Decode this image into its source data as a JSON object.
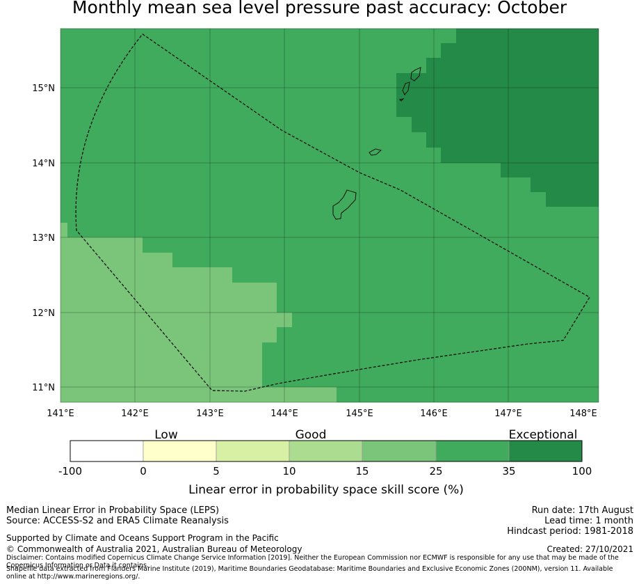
{
  "title": "Monthly mean sea level pressure past accuracy: October",
  "map": {
    "lon_ticks": [
      "141°E",
      "142°E",
      "143°E",
      "144°E",
      "145°E",
      "146°E",
      "147°E",
      "148°E"
    ],
    "lat_ticks": [
      "15°N",
      "14°N",
      "13°N",
      "12°N",
      "11°N"
    ],
    "colors": {
      "c25_35": "#40aa5d",
      "c35_100": "#248a47",
      "c15_25": "#7ac57a"
    }
  },
  "colorbar": {
    "category_labels": [
      "Low",
      "Good",
      "Exceptional"
    ],
    "tick_labels": [
      "-100",
      "0",
      "5",
      "10",
      "15",
      "25",
      "35",
      "100"
    ],
    "colors": [
      "#ffffff",
      "#ffffcc",
      "#d8f0a3",
      "#acdc8f",
      "#7ac57a",
      "#40aa5d",
      "#248a47"
    ],
    "axis_label": "Linear error in probability space skill score (%)"
  },
  "footer": {
    "left_line1": "Median Linear Error in Probability Space (LEPS)",
    "left_line2": "Source: ACCESS-S2 and ERA5 Climate Reanalysis",
    "support": "Supported by Climate and Oceans Support Program in the Pacific",
    "copyright": "© Commonwealth of Australia 2021, Australian Bureau of Meteorology",
    "disclaimer": "Disclaimer: Contains modified Copernicus Climate Change Service Information [2019]. Neither the European Commission nor ECMWF is responsible for any use that may be made of the Copernicus Information or Data it contains.",
    "shapefile": "Shapefile data extracted from Flanders Marine Institute (2019), Maritime Boundaries Geodatabase: Maritime Boundaries and Exclusive Economic Zones (200NM), version 11. Available online at http://www.marineregions.org/.",
    "run_date": "Run date: 17th August",
    "lead_time": "Lead time: 1 month",
    "hindcast": "Hindcast period: 1981-2018",
    "created": "Created: 27/10/2021"
  }
}
